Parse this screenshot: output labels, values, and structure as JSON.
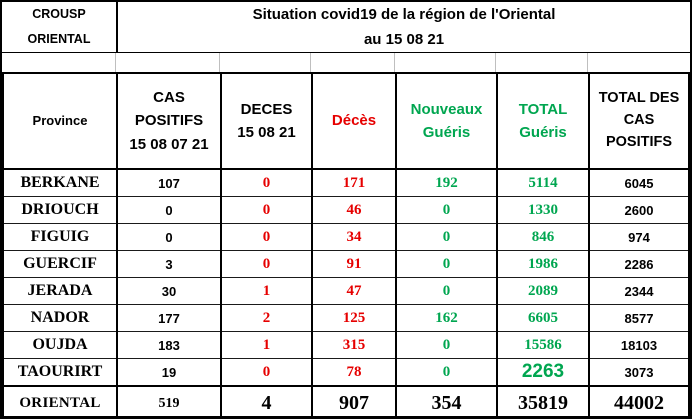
{
  "palette": {
    "red": "#e60000",
    "green": "#00a650",
    "black": "#000000",
    "grid_light_gray": "#bfbfbf",
    "background": "#ffffff"
  },
  "header": {
    "org": "CROUSP\nORIENTAL",
    "title": "Situation covid19 de la région de l'Oriental\nau 15 08 21"
  },
  "table": {
    "columns": [
      {
        "key": "province",
        "label": "Province",
        "header_color": "#000000",
        "value_color": "#000000"
      },
      {
        "key": "cas_positifs_15_08_07_21",
        "label": "CAS\nPOSITIFS\n15 08 07 21",
        "header_color": "#000000",
        "value_color": "#000000"
      },
      {
        "key": "deces_15_08_21",
        "label": "DECES\n15 08 21",
        "header_color": "#000000",
        "value_color": "#e60000"
      },
      {
        "key": "deces",
        "label": "Décès",
        "header_color": "#e60000",
        "value_color": "#e60000"
      },
      {
        "key": "nouveaux_gueris",
        "label": "Nouveaux\nGuéris",
        "header_color": "#00a650",
        "value_color": "#00a650"
      },
      {
        "key": "total_gueris",
        "label": "TOTAL\nGuéris",
        "header_color": "#00a650",
        "value_color": "#00a650"
      },
      {
        "key": "total_des_cas_positifs",
        "label": "TOTAL DES\nCAS\nPOSITIFS",
        "header_color": "#000000",
        "value_color": "#000000"
      }
    ],
    "rows": [
      {
        "province": "BERKANE",
        "cas_positifs_15_08_07_21": "107",
        "deces_15_08_21": "0",
        "deces": "171",
        "nouveaux_gueris": "192",
        "total_gueris": "5114",
        "total_des_cas_positifs": "6045"
      },
      {
        "province": "DRIOUCH",
        "cas_positifs_15_08_07_21": "0",
        "deces_15_08_21": "0",
        "deces": "46",
        "nouveaux_gueris": "0",
        "total_gueris": "1330",
        "total_des_cas_positifs": "2600"
      },
      {
        "province": "FIGUIG",
        "cas_positifs_15_08_07_21": "0",
        "deces_15_08_21": "0",
        "deces": "34",
        "nouveaux_gueris": "0",
        "total_gueris": "846",
        "total_des_cas_positifs": "974"
      },
      {
        "province": "GUERCIF",
        "cas_positifs_15_08_07_21": "3",
        "deces_15_08_21": "0",
        "deces": "91",
        "nouveaux_gueris": "0",
        "total_gueris": "1986",
        "total_des_cas_positifs": "2286"
      },
      {
        "province": "JERADA",
        "cas_positifs_15_08_07_21": "30",
        "deces_15_08_21": "1",
        "deces": "47",
        "nouveaux_gueris": "0",
        "total_gueris": "2089",
        "total_des_cas_positifs": "2344"
      },
      {
        "province": "NADOR",
        "cas_positifs_15_08_07_21": "177",
        "deces_15_08_21": "2",
        "deces": "125",
        "nouveaux_gueris": "162",
        "total_gueris": "6605",
        "total_des_cas_positifs": "8577"
      },
      {
        "province": "OUJDA",
        "cas_positifs_15_08_07_21": "183",
        "deces_15_08_21": "1",
        "deces": "315",
        "nouveaux_gueris": "0",
        "total_gueris": "15586",
        "total_des_cas_positifs": "18103"
      },
      {
        "province": "TAOURIRT",
        "cas_positifs_15_08_07_21": "19",
        "deces_15_08_21": "0",
        "deces": "78",
        "nouveaux_gueris": "0",
        "total_gueris": "2263",
        "total_des_cas_positifs": "3073"
      }
    ],
    "total_row": {
      "province": "ORIENTAL",
      "cas_positifs_15_08_07_21": "519",
      "deces_15_08_21": "4",
      "deces": "907",
      "nouveaux_gueris": "354",
      "total_gueris": "35819",
      "total_des_cas_positifs": "44002"
    }
  }
}
